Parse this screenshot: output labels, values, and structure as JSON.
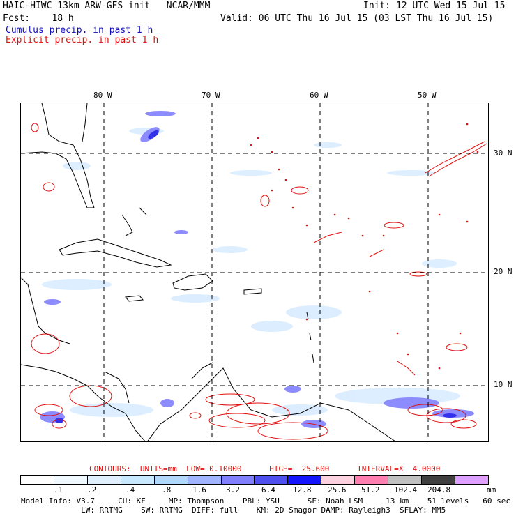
{
  "header": {
    "line1_left": "HAIC-HIWC 13km ARW-GFS init   NCAR/MMM",
    "line1_right": "Init: 12 UTC Wed 15 Jul 15",
    "line2_left": "Fcst:    18 h",
    "line2_right": "Valid: 06 UTC Thu 16 Jul 15 (03 LST Thu 16 Jul 15)",
    "field1": "Cumulus precip. in past 1 h",
    "field2": "Explicit precip. in past 1 h"
  },
  "map": {
    "lon_labels": [
      "80 W",
      "70 W",
      "60 W",
      "50 W"
    ],
    "lat_labels": [
      "30 N",
      "20 N",
      "10 N"
    ],
    "coast_color": "#000000",
    "grid_color": "#000000",
    "explicit_color": "#e01010"
  },
  "contours": {
    "text": "CONTOURS:  UNITS=mm  LOW= 0.10000      HIGH=  25.600      INTERVAL=X  4.0000"
  },
  "legend": {
    "colors": [
      "#ffffff",
      "#f0f8ff",
      "#e0f0ff",
      "#c8e8ff",
      "#b0d8ff",
      "#a0b4ff",
      "#8080ff",
      "#5050f0",
      "#1414ff",
      "#ffd0e0",
      "#ff80b0",
      "#c0c0c0",
      "#404040",
      "#e0a0ff"
    ],
    "ticks": [
      ".1",
      ".2",
      ".4",
      ".8",
      "1.6",
      "3.2",
      "6.4",
      "12.8",
      "25.6",
      "51.2",
      "102.4",
      "204.8"
    ],
    "units": "mm"
  },
  "footer": {
    "line1": "Model Info: V3.7     CU: KF     MP: Thompson    PBL: YSU      SF: Noah LSM     13 km    51 levels   60 sec",
    "line2": "             LW: RRTMG    SW: RRTMG  DIFF: full    KM: 2D Smagor DAMP: Rayleigh3  SFLAY: MM5"
  }
}
